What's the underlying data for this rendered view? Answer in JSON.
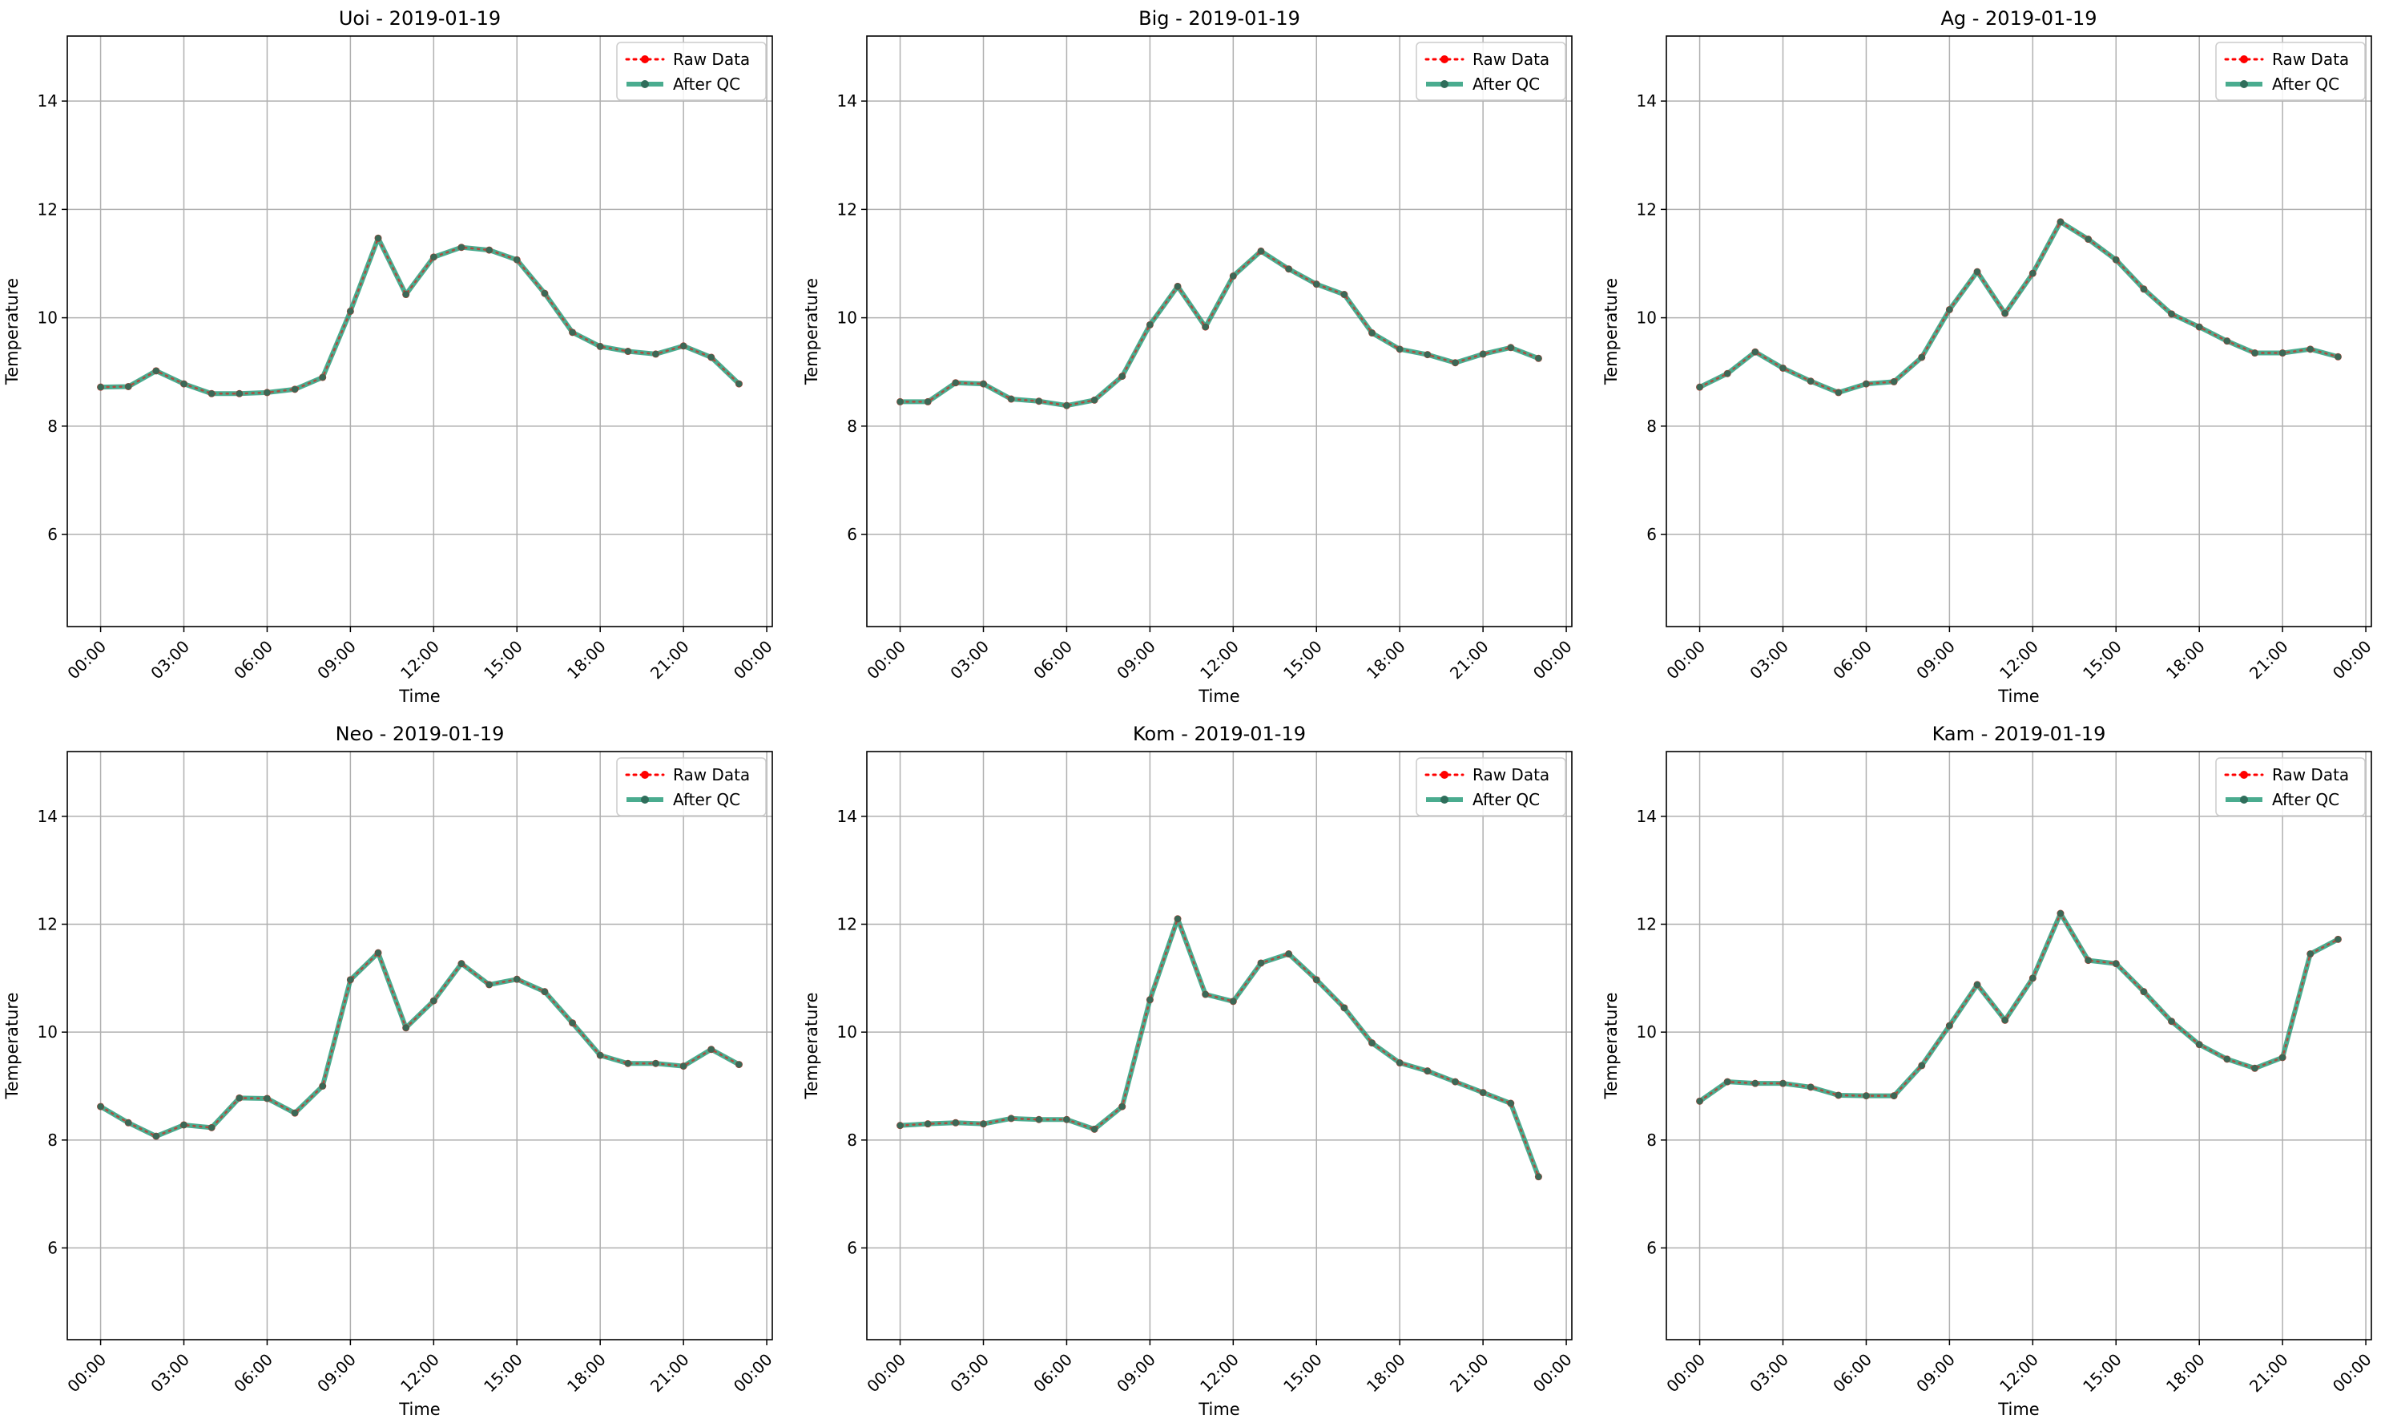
{
  "figure": {
    "background": "#ffffff"
  },
  "legend": {
    "raw_label": "Raw Data",
    "qc_label": "After QC",
    "placement": "top-right"
  },
  "colors": {
    "raw": "#ff0000",
    "qc": "#2a9d7b",
    "grid": "#b0b0b0",
    "frame": "#000000"
  },
  "chart_data": [
    {
      "type": "line",
      "title": "Uoi - 2019-01-19",
      "xlabel": "Time",
      "ylabel": "Temperature",
      "ylim": [
        4.3,
        15.2
      ],
      "xlim": [
        -1.2,
        24.2
      ],
      "grid": true,
      "x_ticks": [
        0,
        3,
        6,
        9,
        12,
        15,
        18,
        21,
        24
      ],
      "x_tick_labels": [
        "00:00",
        "03:00",
        "06:00",
        "09:00",
        "12:00",
        "15:00",
        "18:00",
        "21:00",
        "00:00"
      ],
      "y_ticks": [
        6,
        8,
        10,
        12,
        14
      ],
      "y_tick_labels": [
        "6",
        "8",
        "10",
        "12",
        "14"
      ],
      "x": [
        0,
        1,
        2,
        3,
        4,
        5,
        6,
        7,
        8,
        9,
        10,
        11,
        12,
        13,
        14,
        15,
        16,
        17,
        18,
        19,
        20,
        21,
        22,
        23
      ],
      "series": [
        {
          "name": "Raw Data",
          "values": [
            8.72,
            8.73,
            9.02,
            8.78,
            8.6,
            8.6,
            8.62,
            8.68,
            8.9,
            10.12,
            11.47,
            10.43,
            11.12,
            11.3,
            11.25,
            11.07,
            10.45,
            9.73,
            9.47,
            9.38,
            9.33,
            9.48,
            9.27,
            8.78
          ]
        },
        {
          "name": "After QC",
          "values": [
            8.72,
            8.73,
            9.02,
            8.78,
            8.6,
            8.6,
            8.62,
            8.68,
            8.9,
            10.12,
            11.47,
            10.43,
            11.12,
            11.3,
            11.25,
            11.07,
            10.45,
            9.73,
            9.47,
            9.38,
            9.33,
            9.48,
            9.27,
            8.78
          ]
        }
      ]
    },
    {
      "type": "line",
      "title": "Big - 2019-01-19",
      "xlabel": "Time",
      "ylabel": "Temperature",
      "ylim": [
        4.3,
        15.2
      ],
      "xlim": [
        -1.2,
        24.2
      ],
      "grid": true,
      "x_ticks": [
        0,
        3,
        6,
        9,
        12,
        15,
        18,
        21,
        24
      ],
      "x_tick_labels": [
        "00:00",
        "03:00",
        "06:00",
        "09:00",
        "12:00",
        "15:00",
        "18:00",
        "21:00",
        "00:00"
      ],
      "y_ticks": [
        6,
        8,
        10,
        12,
        14
      ],
      "y_tick_labels": [
        "6",
        "8",
        "10",
        "12",
        "14"
      ],
      "x": [
        0,
        1,
        2,
        3,
        4,
        5,
        6,
        7,
        8,
        9,
        10,
        11,
        12,
        13,
        14,
        15,
        16,
        17,
        18,
        19,
        20,
        21,
        22,
        23
      ],
      "series": [
        {
          "name": "Raw Data",
          "values": [
            8.45,
            8.45,
            8.8,
            8.78,
            8.5,
            8.46,
            8.38,
            8.48,
            8.92,
            9.87,
            10.58,
            9.83,
            10.77,
            11.23,
            10.9,
            10.62,
            10.43,
            9.72,
            9.42,
            9.32,
            9.17,
            9.33,
            9.45,
            9.25
          ]
        },
        {
          "name": "After QC",
          "values": [
            8.45,
            8.45,
            8.8,
            8.78,
            8.5,
            8.46,
            8.38,
            8.48,
            8.92,
            9.87,
            10.58,
            9.83,
            10.77,
            11.23,
            10.9,
            10.62,
            10.43,
            9.72,
            9.42,
            9.32,
            9.17,
            9.33,
            9.45,
            9.25
          ]
        }
      ]
    },
    {
      "type": "line",
      "title": "Ag - 2019-01-19",
      "xlabel": "Time",
      "ylabel": "Temperature",
      "ylim": [
        4.3,
        15.2
      ],
      "xlim": [
        -1.2,
        24.2
      ],
      "grid": true,
      "x_ticks": [
        0,
        3,
        6,
        9,
        12,
        15,
        18,
        21,
        24
      ],
      "x_tick_labels": [
        "00:00",
        "03:00",
        "06:00",
        "09:00",
        "12:00",
        "15:00",
        "18:00",
        "21:00",
        "00:00"
      ],
      "y_ticks": [
        6,
        8,
        10,
        12,
        14
      ],
      "y_tick_labels": [
        "6",
        "8",
        "10",
        "12",
        "14"
      ],
      "x": [
        0,
        1,
        2,
        3,
        4,
        5,
        6,
        7,
        8,
        9,
        10,
        11,
        12,
        13,
        14,
        15,
        16,
        17,
        18,
        19,
        20,
        21,
        22,
        23
      ],
      "series": [
        {
          "name": "Raw Data",
          "values": [
            8.72,
            8.97,
            9.37,
            9.07,
            8.83,
            8.62,
            8.78,
            8.82,
            9.27,
            10.15,
            10.85,
            10.08,
            10.82,
            11.77,
            11.45,
            11.07,
            10.53,
            10.07,
            9.83,
            9.57,
            9.35,
            9.35,
            9.42,
            9.28
          ]
        },
        {
          "name": "After QC",
          "values": [
            8.72,
            8.97,
            9.37,
            9.07,
            8.83,
            8.62,
            8.78,
            8.82,
            9.27,
            10.15,
            10.85,
            10.08,
            10.82,
            11.77,
            11.45,
            11.07,
            10.53,
            10.07,
            9.83,
            9.57,
            9.35,
            9.35,
            9.42,
            9.28
          ]
        }
      ]
    },
    {
      "type": "line",
      "title": "Neo - 2019-01-19",
      "xlabel": "Time",
      "ylabel": "Temperature",
      "ylim": [
        4.3,
        15.2
      ],
      "xlim": [
        -1.2,
        24.2
      ],
      "grid": true,
      "x_ticks": [
        0,
        3,
        6,
        9,
        12,
        15,
        18,
        21,
        24
      ],
      "x_tick_labels": [
        "00:00",
        "03:00",
        "06:00",
        "09:00",
        "12:00",
        "15:00",
        "18:00",
        "21:00",
        "00:00"
      ],
      "y_ticks": [
        6,
        8,
        10,
        12,
        14
      ],
      "y_tick_labels": [
        "6",
        "8",
        "10",
        "12",
        "14"
      ],
      "x": [
        0,
        1,
        2,
        3,
        4,
        5,
        6,
        7,
        8,
        9,
        10,
        11,
        12,
        13,
        14,
        15,
        16,
        17,
        18,
        19,
        20,
        21,
        22,
        23
      ],
      "series": [
        {
          "name": "Raw Data",
          "values": [
            8.62,
            8.32,
            8.07,
            8.28,
            8.23,
            8.78,
            8.77,
            8.5,
            9.0,
            10.97,
            11.47,
            10.08,
            10.58,
            11.27,
            10.88,
            10.98,
            10.75,
            10.17,
            9.57,
            9.42,
            9.42,
            9.37,
            9.68,
            9.4
          ]
        },
        {
          "name": "After QC",
          "values": [
            8.62,
            8.32,
            8.07,
            8.28,
            8.23,
            8.78,
            8.77,
            8.5,
            9.0,
            10.97,
            11.47,
            10.08,
            10.58,
            11.27,
            10.88,
            10.98,
            10.75,
            10.17,
            9.57,
            9.42,
            9.42,
            9.37,
            9.68,
            9.4
          ]
        }
      ]
    },
    {
      "type": "line",
      "title": "Kom - 2019-01-19",
      "xlabel": "Time",
      "ylabel": "Temperature",
      "ylim": [
        4.3,
        15.2
      ],
      "xlim": [
        -1.2,
        24.2
      ],
      "grid": true,
      "x_ticks": [
        0,
        3,
        6,
        9,
        12,
        15,
        18,
        21,
        24
      ],
      "x_tick_labels": [
        "00:00",
        "03:00",
        "06:00",
        "09:00",
        "12:00",
        "15:00",
        "18:00",
        "21:00",
        "00:00"
      ],
      "y_ticks": [
        6,
        8,
        10,
        12,
        14
      ],
      "y_tick_labels": [
        "6",
        "8",
        "10",
        "12",
        "14"
      ],
      "x": [
        0,
        1,
        2,
        3,
        4,
        5,
        6,
        7,
        8,
        9,
        10,
        11,
        12,
        13,
        14,
        15,
        16,
        17,
        18,
        19,
        20,
        21,
        22,
        23
      ],
      "series": [
        {
          "name": "Raw Data",
          "values": [
            8.27,
            8.3,
            8.32,
            8.3,
            8.4,
            8.38,
            8.38,
            8.2,
            8.62,
            10.6,
            12.1,
            10.7,
            10.57,
            11.28,
            11.45,
            10.97,
            10.45,
            9.8,
            9.43,
            9.28,
            9.08,
            8.88,
            8.68,
            7.32
          ]
        },
        {
          "name": "After QC",
          "values": [
            8.27,
            8.3,
            8.32,
            8.3,
            8.4,
            8.38,
            8.38,
            8.2,
            8.62,
            10.6,
            12.1,
            10.7,
            10.57,
            11.28,
            11.45,
            10.97,
            10.45,
            9.8,
            9.43,
            9.28,
            9.08,
            8.88,
            8.68,
            7.32
          ]
        }
      ]
    },
    {
      "type": "line",
      "title": "Kam - 2019-01-19",
      "xlabel": "Time",
      "ylabel": "Temperature",
      "ylim": [
        4.3,
        15.2
      ],
      "xlim": [
        -1.2,
        24.2
      ],
      "grid": true,
      "x_ticks": [
        0,
        3,
        6,
        9,
        12,
        15,
        18,
        21,
        24
      ],
      "x_tick_labels": [
        "00:00",
        "03:00",
        "06:00",
        "09:00",
        "12:00",
        "15:00",
        "18:00",
        "21:00",
        "00:00"
      ],
      "y_ticks": [
        6,
        8,
        10,
        12,
        14
      ],
      "y_tick_labels": [
        "6",
        "8",
        "10",
        "12",
        "14"
      ],
      "x": [
        0,
        1,
        2,
        3,
        4,
        5,
        6,
        7,
        8,
        9,
        10,
        11,
        12,
        13,
        14,
        15,
        16,
        17,
        18,
        19,
        20,
        21,
        22,
        23
      ],
      "series": [
        {
          "name": "Raw Data",
          "values": [
            8.72,
            9.08,
            9.05,
            9.05,
            8.98,
            8.83,
            8.82,
            8.82,
            9.38,
            10.12,
            10.88,
            10.22,
            11.0,
            12.2,
            11.33,
            11.27,
            10.75,
            10.2,
            9.77,
            9.5,
            9.33,
            9.53,
            11.45,
            11.72
          ]
        },
        {
          "name": "After QC",
          "values": [
            8.72,
            9.08,
            9.05,
            9.05,
            8.98,
            8.83,
            8.82,
            8.82,
            9.38,
            10.12,
            10.88,
            10.22,
            11.0,
            12.2,
            11.33,
            11.27,
            10.75,
            10.2,
            9.77,
            9.5,
            9.33,
            9.53,
            11.45,
            11.72
          ]
        }
      ]
    }
  ]
}
